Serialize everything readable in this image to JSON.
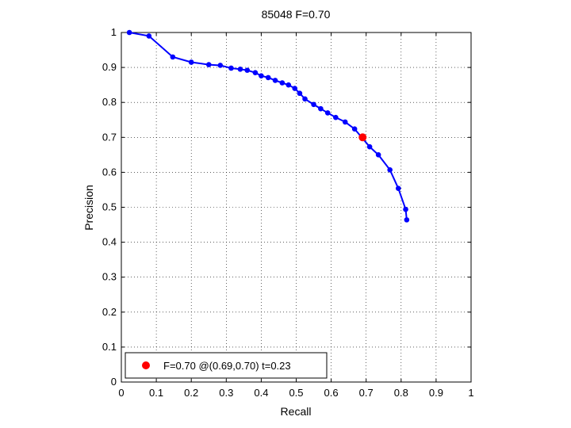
{
  "chart_data": {
    "type": "line",
    "title": "85048 F=0.70",
    "xlabel": "Recall",
    "ylabel": "Precision",
    "xlim": [
      0,
      1
    ],
    "ylim": [
      0,
      1
    ],
    "grid": true,
    "xticks": [
      "0",
      "0.1",
      "0.2",
      "0.3",
      "0.4",
      "0.5",
      "0.6",
      "0.7",
      "0.8",
      "0.9",
      "1"
    ],
    "yticks": [
      "0",
      "0.1",
      "0.2",
      "0.3",
      "0.4",
      "0.5",
      "0.6",
      "0.7",
      "0.8",
      "0.9",
      "1"
    ],
    "legend_position": "bottom-left",
    "series": [
      {
        "color": "#0000ff",
        "x": [
          0.023,
          0.079,
          0.147,
          0.2,
          0.25,
          0.283,
          0.314,
          0.34,
          0.36,
          0.383,
          0.4,
          0.42,
          0.44,
          0.46,
          0.478,
          0.496,
          0.51,
          0.525,
          0.55,
          0.57,
          0.59,
          0.613,
          0.64,
          0.667,
          0.71,
          0.735,
          0.768,
          0.792,
          0.813,
          0.816
        ],
        "y": [
          1.0,
          0.99,
          0.93,
          0.915,
          0.908,
          0.906,
          0.898,
          0.895,
          0.892,
          0.885,
          0.876,
          0.871,
          0.863,
          0.856,
          0.85,
          0.84,
          0.826,
          0.81,
          0.794,
          0.782,
          0.77,
          0.757,
          0.744,
          0.724,
          0.673,
          0.65,
          0.607,
          0.554,
          0.494,
          0.464
        ]
      }
    ],
    "highlight": {
      "x": 0.69,
      "y": 0.7,
      "color": "#ff0000",
      "label": "F=0.70 @(0.69,0.70) t=0.23"
    }
  }
}
